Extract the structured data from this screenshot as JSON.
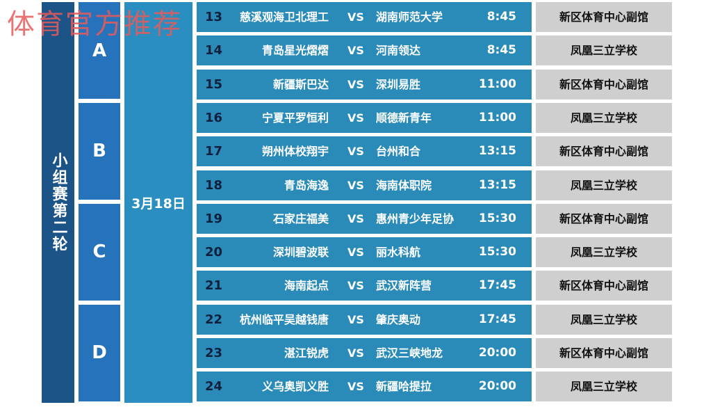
{
  "stage": "小组赛第二轮",
  "date": "3月18日",
  "groups": [
    "A",
    "B",
    "C",
    "D"
  ],
  "vs_label": "VS",
  "matches": [
    {
      "num": "13",
      "home": "慈溪观海卫北理工",
      "away": "湖南师范大学",
      "time": "8:45",
      "venue": "新区体育中心副馆"
    },
    {
      "num": "14",
      "home": "青岛星光熠熠",
      "away": "河南领达",
      "time": "8:45",
      "venue": "凤凰三立学校"
    },
    {
      "num": "15",
      "home": "新疆斯巴达",
      "away": "深圳易胜",
      "time": "11:00",
      "venue": "新区体育中心副馆"
    },
    {
      "num": "16",
      "home": "宁夏平罗恒利",
      "away": "顺德新青年",
      "time": "11:00",
      "venue": "凤凰三立学校"
    },
    {
      "num": "17",
      "home": "朔州体校翔宇",
      "away": "台州和合",
      "time": "13:15",
      "venue": "新区体育中心副馆"
    },
    {
      "num": "18",
      "home": "青岛海逸",
      "away": "海南体职院",
      "time": "13:15",
      "venue": "凤凰三立学校"
    },
    {
      "num": "19",
      "home": "石家庄福美",
      "away": "惠州青少年足协",
      "time": "15:30",
      "venue": "新区体育中心副馆"
    },
    {
      "num": "20",
      "home": "深圳碧波联",
      "away": "丽水科航",
      "time": "15:30",
      "venue": "凤凰三立学校"
    },
    {
      "num": "21",
      "home": "海南起点",
      "away": "武汉新阵营",
      "time": "17:45",
      "venue": "新区体育中心副馆"
    },
    {
      "num": "22",
      "home": "杭州临平吴越钱唐",
      "away": "肇庆奥动",
      "time": "17:45",
      "venue": "凤凰三立学校"
    },
    {
      "num": "23",
      "home": "湛江锐虎",
      "away": "武汉三峡地龙",
      "time": "20:00",
      "venue": "新区体育中心副馆"
    },
    {
      "num": "24",
      "home": "义乌奥凯义胜",
      "away": "新疆哈提拉",
      "time": "20:00",
      "venue": "凤凰三立学校"
    }
  ],
  "watermark": "体育官方推荐",
  "colors": {
    "stage": "#1d5488",
    "group": "#2673bb",
    "date": "#2a8fc0",
    "row": "#2a8bb9",
    "venue": "#cfcfcf",
    "watermark": "#e65a5a"
  }
}
